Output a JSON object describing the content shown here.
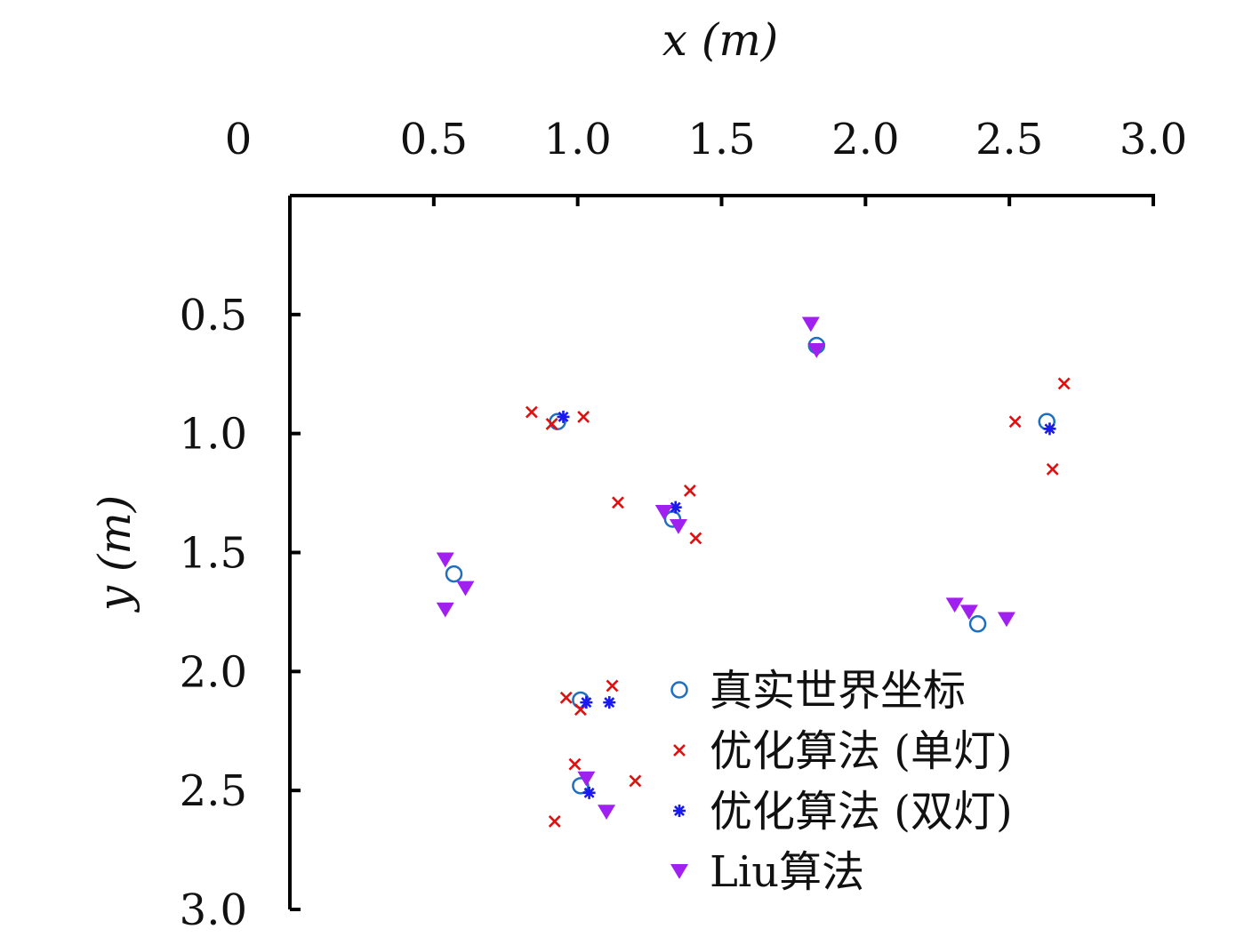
{
  "chart_data": {
    "type": "scatter",
    "xlabel": "x (m)",
    "ylabel": "y (m)",
    "x_axis_position": "top",
    "y_axis_inverted": true,
    "xlim": [
      0,
      3.0
    ],
    "ylim": [
      0,
      3.0
    ],
    "x_ticks": [
      0,
      0.5,
      1.0,
      1.5,
      2.0,
      2.5,
      3.0
    ],
    "x_tick_labels": [
      "0",
      "0.5",
      "1.0",
      "1.5",
      "2.0",
      "2.5",
      "3.0"
    ],
    "y_ticks": [
      0.5,
      1.0,
      1.5,
      2.0,
      2.5,
      3.0
    ],
    "y_tick_labels": [
      "0.5",
      "1.0",
      "1.5",
      "2.0",
      "2.5",
      "3.0"
    ],
    "grid": false,
    "legend_position": "bottom-right",
    "series": [
      {
        "name": "真实世界坐标",
        "marker": "circle-open",
        "color": "#1f6fc0",
        "points": [
          [
            0.93,
            0.95
          ],
          [
            1.83,
            0.63
          ],
          [
            0.57,
            1.59
          ],
          [
            1.33,
            1.36
          ],
          [
            2.63,
            0.95
          ],
          [
            2.39,
            1.8
          ],
          [
            1.01,
            2.12
          ],
          [
            1.01,
            2.48
          ]
        ]
      },
      {
        "name": "优化算法 (单灯)",
        "marker": "x",
        "color": "#e01010",
        "points": [
          [
            0.84,
            0.91
          ],
          [
            0.91,
            0.96
          ],
          [
            1.02,
            0.93
          ],
          [
            1.14,
            1.29
          ],
          [
            1.39,
            1.24
          ],
          [
            1.41,
            1.44
          ],
          [
            2.52,
            0.95
          ],
          [
            2.69,
            0.79
          ],
          [
            2.65,
            1.15
          ],
          [
            0.96,
            2.11
          ],
          [
            1.01,
            2.16
          ],
          [
            1.12,
            2.06
          ],
          [
            0.99,
            2.39
          ],
          [
            0.92,
            2.63
          ],
          [
            1.2,
            2.46
          ]
        ]
      },
      {
        "name": "优化算法 (双灯)",
        "marker": "asterisk",
        "color": "#1a1aee",
        "points": [
          [
            0.95,
            0.93
          ],
          [
            1.34,
            1.31
          ],
          [
            2.64,
            0.98
          ],
          [
            1.03,
            2.13
          ],
          [
            1.11,
            2.13
          ],
          [
            1.04,
            2.51
          ]
        ]
      },
      {
        "name": "Liu算法",
        "marker": "triangle-down",
        "color": "#a020f0",
        "points": [
          [
            1.81,
            0.54
          ],
          [
            1.83,
            0.65
          ],
          [
            1.3,
            1.33
          ],
          [
            1.35,
            1.39
          ],
          [
            0.54,
            1.53
          ],
          [
            0.61,
            1.65
          ],
          [
            0.54,
            1.74
          ],
          [
            2.31,
            1.72
          ],
          [
            2.36,
            1.75
          ],
          [
            2.49,
            1.78
          ],
          [
            1.03,
            2.45
          ],
          [
            1.1,
            2.59
          ]
        ]
      }
    ]
  }
}
